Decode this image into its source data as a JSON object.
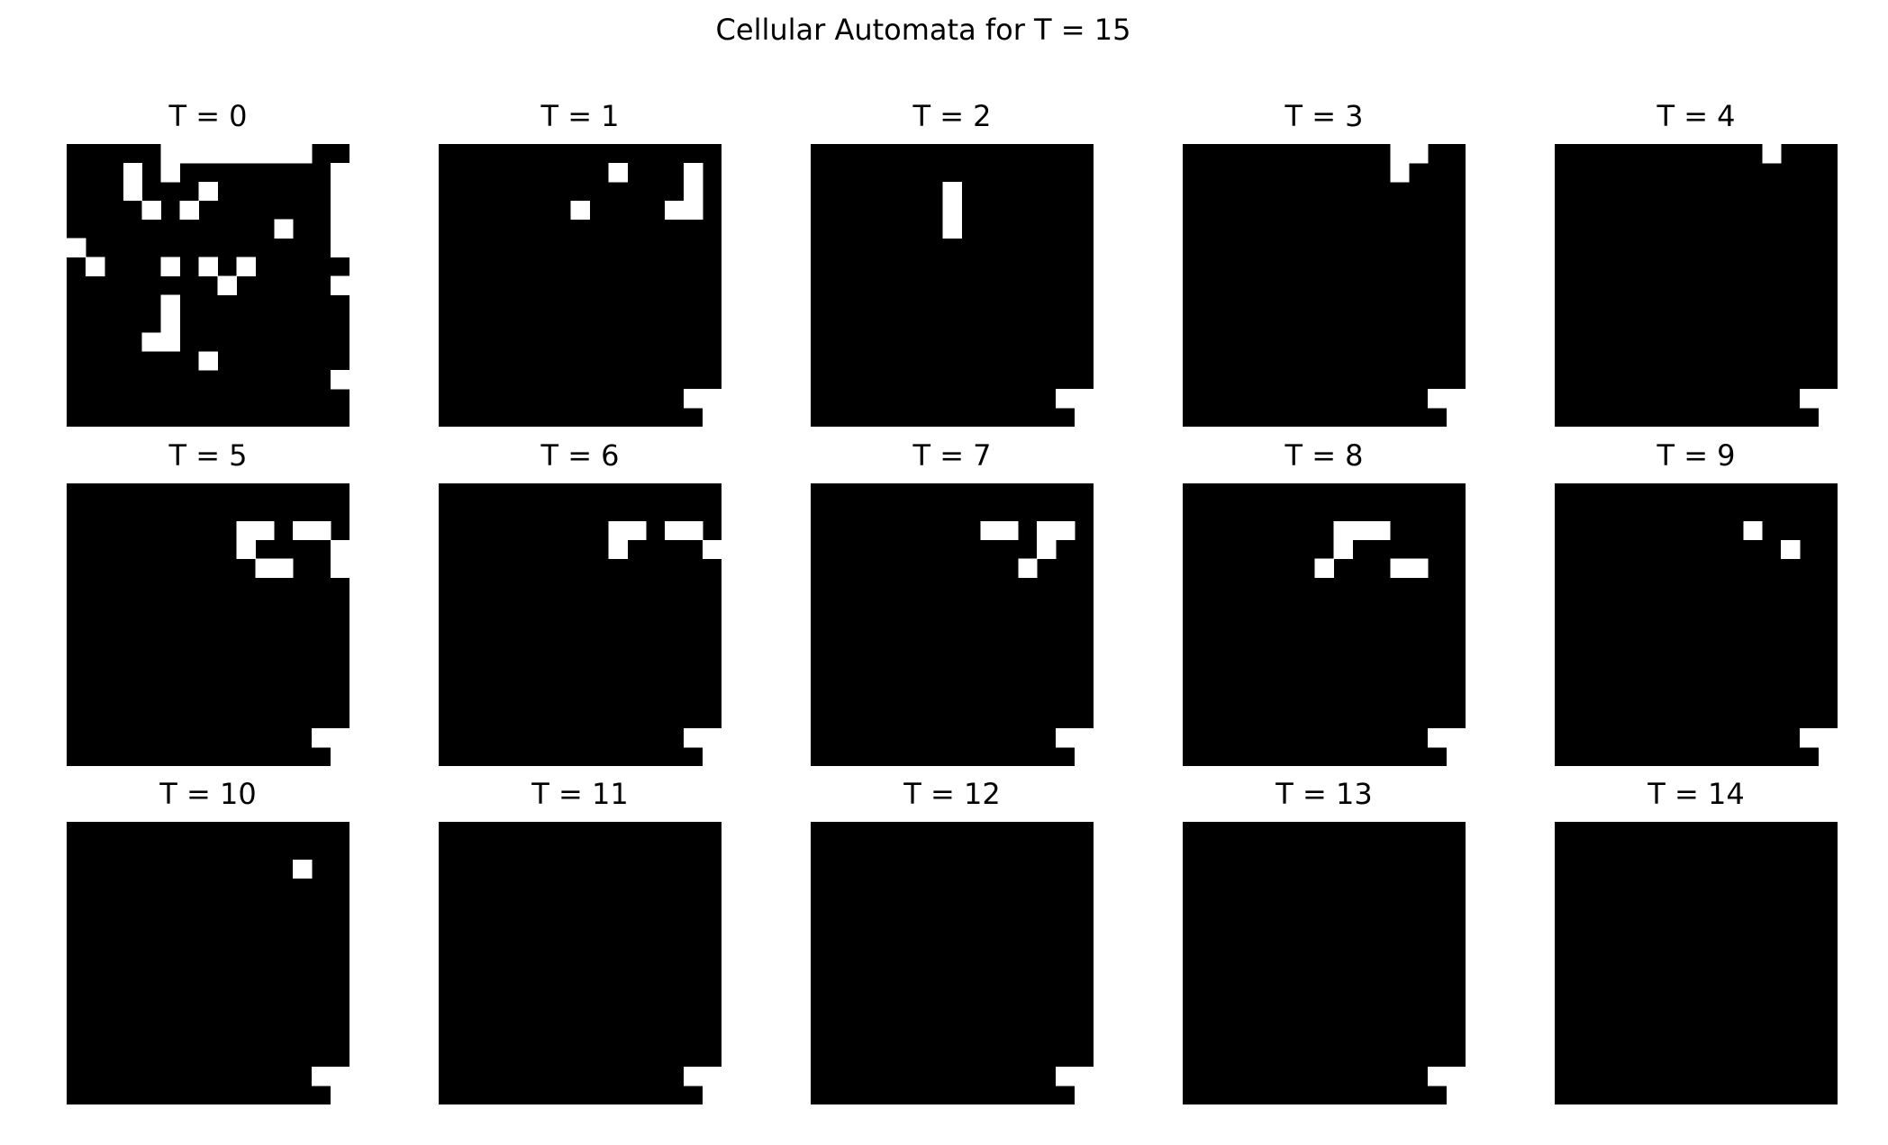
{
  "title": "Cellular Automata for T = 15",
  "chart_data": {
    "type": "heatmap",
    "title": "Cellular Automata for T = 15",
    "grid_size": 15,
    "colors": {
      "alive": "#ffffff",
      "dead": "#000000"
    },
    "panels": [
      {
        "label": "T = 0",
        "rows": [
          "000001111111100",
          "000101000000001",
          "000100010000001",
          "000010100000001",
          "000000000001001",
          "100000000000001",
          "010001010100000",
          "000000001000001",
          "000001000000000",
          "000001000000000",
          "000011000000000",
          "000000010000000",
          "000000000000001",
          "000000000000000",
          "000000000000000"
        ]
      },
      {
        "label": "T = 1",
        "rows": [
          "000000000000000",
          "000000000100010",
          "000000000000010",
          "000000010000110",
          "000000000000000",
          "000000000000000",
          "000000000000000",
          "000000000000000",
          "000000000000000",
          "000000000000000",
          "000000000000000",
          "000000000000000",
          "000000000000000",
          "000000000000011",
          "000000000000001"
        ]
      },
      {
        "label": "T = 2",
        "rows": [
          "000000000000000",
          "000000000000000",
          "000000010000000",
          "000000010000000",
          "000000010000000",
          "000000000000000",
          "000000000000000",
          "000000000000000",
          "000000000000000",
          "000000000000000",
          "000000000000000",
          "000000000000000",
          "000000000000000",
          "000000000000011",
          "000000000000001"
        ]
      },
      {
        "label": "T = 3",
        "rows": [
          "000000000001100",
          "000000000001000",
          "000000000000000",
          "000000000000000",
          "000000000000000",
          "000000000000000",
          "000000000000000",
          "000000000000000",
          "000000000000000",
          "000000000000000",
          "000000000000000",
          "000000000000000",
          "000000000000000",
          "000000000000011",
          "000000000000001"
        ]
      },
      {
        "label": "T = 4",
        "rows": [
          "000000000001000",
          "000000000000000",
          "000000000000000",
          "000000000000000",
          "000000000000000",
          "000000000000000",
          "000000000000000",
          "000000000000000",
          "000000000000000",
          "000000000000000",
          "000000000000000",
          "000000000000000",
          "000000000000000",
          "000000000000011",
          "000000000000001"
        ]
      },
      {
        "label": "T = 5",
        "rows": [
          "000000000000000",
          "000000000000000",
          "000000000110110",
          "000000000100001",
          "000000000011001",
          "000000000000000",
          "000000000000000",
          "000000000000000",
          "000000000000000",
          "000000000000000",
          "000000000000000",
          "000000000000000",
          "000000000000000",
          "000000000000011",
          "000000000000001"
        ]
      },
      {
        "label": "T = 6",
        "rows": [
          "000000000000000",
          "000000000000000",
          "000000000110110",
          "000000000100001",
          "000000000000000",
          "000000000000000",
          "000000000000000",
          "000000000000000",
          "000000000000000",
          "000000000000000",
          "000000000000000",
          "000000000000000",
          "000000000000000",
          "000000000000011",
          "000000000000001"
        ]
      },
      {
        "label": "T = 7",
        "rows": [
          "000000000000000",
          "000000000000000",
          "000000000110110",
          "000000000000100",
          "000000000001000",
          "000000000000000",
          "000000000000000",
          "000000000000000",
          "000000000000000",
          "000000000000000",
          "000000000000000",
          "000000000000000",
          "000000000000000",
          "000000000000011",
          "000000000000001"
        ]
      },
      {
        "label": "T = 8",
        "rows": [
          "000000000000000",
          "000000000000000",
          "000000001110000",
          "000000001000000",
          "000000010001100",
          "000000000000000",
          "000000000000000",
          "000000000000000",
          "000000000000000",
          "000000000000000",
          "000000000000000",
          "000000000000000",
          "000000000000000",
          "000000000000011",
          "000000000000001"
        ]
      },
      {
        "label": "T = 9",
        "rows": [
          "000000000000000",
          "000000000000000",
          "000000000010000",
          "000000000000100",
          "000000000000000",
          "000000000000000",
          "000000000000000",
          "000000000000000",
          "000000000000000",
          "000000000000000",
          "000000000000000",
          "000000000000000",
          "000000000000000",
          "000000000000011",
          "000000000000001"
        ]
      },
      {
        "label": "T = 10",
        "rows": [
          "000000000000000",
          "000000000000000",
          "000000000000100",
          "000000000000000",
          "000000000000000",
          "000000000000000",
          "000000000000000",
          "000000000000000",
          "000000000000000",
          "000000000000000",
          "000000000000000",
          "000000000000000",
          "000000000000000",
          "000000000000011",
          "000000000000001"
        ]
      },
      {
        "label": "T = 11",
        "rows": [
          "000000000000000",
          "000000000000000",
          "000000000000000",
          "000000000000000",
          "000000000000000",
          "000000000000000",
          "000000000000000",
          "000000000000000",
          "000000000000000",
          "000000000000000",
          "000000000000000",
          "000000000000000",
          "000000000000000",
          "000000000000011",
          "000000000000001"
        ]
      },
      {
        "label": "T = 12",
        "rows": [
          "000000000000000",
          "000000000000000",
          "000000000000000",
          "000000000000000",
          "000000000000000",
          "000000000000000",
          "000000000000000",
          "000000000000000",
          "000000000000000",
          "000000000000000",
          "000000000000000",
          "000000000000000",
          "000000000000000",
          "000000000000011",
          "000000000000001"
        ]
      },
      {
        "label": "T = 13",
        "rows": [
          "000000000000000",
          "000000000000000",
          "000000000000000",
          "000000000000000",
          "000000000000000",
          "000000000000000",
          "000000000000000",
          "000000000000000",
          "000000000000000",
          "000000000000000",
          "000000000000000",
          "000000000000000",
          "000000000000000",
          "000000000000011",
          "000000000000001"
        ]
      },
      {
        "label": "T = 14",
        "rows": [
          "000000000000000",
          "000000000000000",
          "000000000000000",
          "000000000000000",
          "000000000000000",
          "000000000000000",
          "000000000000000",
          "000000000000000",
          "000000000000000",
          "000000000000000",
          "000000000000000",
          "000000000000000",
          "000000000000000",
          "000000000000000",
          "000000000000000"
        ]
      }
    ]
  }
}
